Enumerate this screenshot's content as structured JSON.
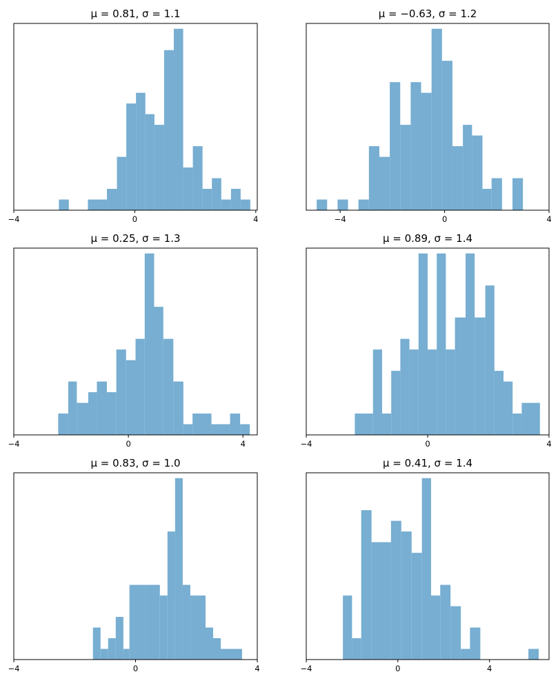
{
  "chart_data": [
    {
      "type": "bar",
      "title": "μ = 0.81,    σ = 1.1",
      "xlim": [
        -4,
        4.05
      ],
      "xticks": [
        -4,
        0,
        4
      ],
      "xtick_labels": [
        "−4",
        "0",
        "4"
      ],
      "ylim": [
        0,
        17.5
      ],
      "yaxis_visible": false,
      "color": "#77aed2",
      "bins": [
        {
          "x0": -2.51,
          "x1": -2.18,
          "count": 1
        },
        {
          "x0": -1.55,
          "x1": -0.92,
          "count": 1
        },
        {
          "x0": -0.92,
          "x1": -0.59,
          "count": 2
        },
        {
          "x0": -0.59,
          "x1": -0.28,
          "count": 5
        },
        {
          "x0": -0.28,
          "x1": 0.04,
          "count": 10
        },
        {
          "x0": 0.04,
          "x1": 0.35,
          "count": 11
        },
        {
          "x0": 0.35,
          "x1": 0.65,
          "count": 9
        },
        {
          "x0": 0.65,
          "x1": 0.97,
          "count": 8
        },
        {
          "x0": 0.97,
          "x1": 1.29,
          "count": 15
        },
        {
          "x0": 1.29,
          "x1": 1.6,
          "count": 17
        },
        {
          "x0": 1.6,
          "x1": 1.92,
          "count": 4
        },
        {
          "x0": 1.92,
          "x1": 2.24,
          "count": 6
        },
        {
          "x0": 2.24,
          "x1": 2.55,
          "count": 2
        },
        {
          "x0": 2.55,
          "x1": 2.86,
          "count": 3
        },
        {
          "x0": 2.86,
          "x1": 3.18,
          "count": 1
        },
        {
          "x0": 3.18,
          "x1": 3.5,
          "count": 2
        },
        {
          "x0": 3.5,
          "x1": 3.82,
          "count": 1
        }
      ]
    },
    {
      "type": "bar",
      "title": "μ = −0.63,    σ = 1.2",
      "xlim": [
        -5.3,
        4
      ],
      "xticks": [
        -4,
        0,
        4
      ],
      "xtick_labels": [
        "−4",
        "0",
        "4"
      ],
      "ylim": [
        0,
        17.5
      ],
      "yaxis_visible": false,
      "color": "#77aed2",
      "bins": [
        {
          "x0": -4.9,
          "x1": -4.5,
          "count": 1
        },
        {
          "x0": -4.1,
          "x1": -3.7,
          "count": 1
        },
        {
          "x0": -3.3,
          "x1": -2.9,
          "count": 1
        },
        {
          "x0": -2.9,
          "x1": -2.5,
          "count": 6
        },
        {
          "x0": -2.5,
          "x1": -2.1,
          "count": 5
        },
        {
          "x0": -2.1,
          "x1": -1.7,
          "count": 12
        },
        {
          "x0": -1.7,
          "x1": -1.3,
          "count": 8
        },
        {
          "x0": -1.3,
          "x1": -0.9,
          "count": 12
        },
        {
          "x0": -0.9,
          "x1": -0.5,
          "count": 11
        },
        {
          "x0": -0.5,
          "x1": -0.1,
          "count": 17
        },
        {
          "x0": -0.1,
          "x1": 0.3,
          "count": 14
        },
        {
          "x0": 0.3,
          "x1": 0.7,
          "count": 6
        },
        {
          "x0": 0.7,
          "x1": 1.05,
          "count": 8
        },
        {
          "x0": 1.05,
          "x1": 1.45,
          "count": 7
        },
        {
          "x0": 1.45,
          "x1": 1.8,
          "count": 2
        },
        {
          "x0": 1.8,
          "x1": 2.2,
          "count": 3
        },
        {
          "x0": 2.6,
          "x1": 3.0,
          "count": 3
        }
      ]
    },
    {
      "type": "bar",
      "title": "μ = 0.25,    σ = 1.3",
      "xlim": [
        -4,
        4.5
      ],
      "xticks": [
        -4,
        0,
        4
      ],
      "xtick_labels": [
        "−4",
        "0",
        "4"
      ],
      "ylim": [
        0,
        17.5
      ],
      "yaxis_visible": false,
      "color": "#77aed2",
      "bins": [
        {
          "x0": -2.45,
          "x1": -2.1,
          "count": 2
        },
        {
          "x0": -2.1,
          "x1": -1.8,
          "count": 5
        },
        {
          "x0": -1.8,
          "x1": -1.4,
          "count": 3
        },
        {
          "x0": -1.4,
          "x1": -1.1,
          "count": 4
        },
        {
          "x0": -1.1,
          "x1": -0.75,
          "count": 5
        },
        {
          "x0": -0.75,
          "x1": -0.42,
          "count": 4
        },
        {
          "x0": -0.42,
          "x1": -0.08,
          "count": 8
        },
        {
          "x0": -0.08,
          "x1": 0.25,
          "count": 7
        },
        {
          "x0": 0.25,
          "x1": 0.57,
          "count": 9
        },
        {
          "x0": 0.57,
          "x1": 0.9,
          "count": 17
        },
        {
          "x0": 0.9,
          "x1": 1.22,
          "count": 12
        },
        {
          "x0": 1.22,
          "x1": 1.57,
          "count": 9
        },
        {
          "x0": 1.57,
          "x1": 1.92,
          "count": 5
        },
        {
          "x0": 1.92,
          "x1": 2.24,
          "count": 1
        },
        {
          "x0": 2.24,
          "x1": 2.9,
          "count": 2
        },
        {
          "x0": 2.9,
          "x1": 3.55,
          "count": 1
        },
        {
          "x0": 3.55,
          "x1": 3.9,
          "count": 2
        },
        {
          "x0": 3.9,
          "x1": 4.24,
          "count": 1
        }
      ]
    },
    {
      "type": "bar",
      "title": "μ = 0.89,    σ = 1.4",
      "xlim": [
        -4,
        4
      ],
      "xticks": [
        -4,
        0,
        4
      ],
      "xtick_labels": [
        "−4",
        "0",
        "4"
      ],
      "ylim": [
        0,
        17.5
      ],
      "yaxis_visible": false,
      "color": "#77aed2",
      "bins": [
        {
          "x0": -2.4,
          "x1": -1.8,
          "count": 2
        },
        {
          "x0": -1.8,
          "x1": -1.5,
          "count": 8
        },
        {
          "x0": -1.5,
          "x1": -1.2,
          "count": 2
        },
        {
          "x0": -1.2,
          "x1": -0.9,
          "count": 6
        },
        {
          "x0": -0.9,
          "x1": -0.6,
          "count": 9
        },
        {
          "x0": -0.6,
          "x1": -0.3,
          "count": 8
        },
        {
          "x0": -0.3,
          "x1": 0.0,
          "count": 17
        },
        {
          "x0": 0.0,
          "x1": 0.3,
          "count": 8
        },
        {
          "x0": 0.3,
          "x1": 0.6,
          "count": 17
        },
        {
          "x0": 0.6,
          "x1": 0.9,
          "count": 8
        },
        {
          "x0": 0.9,
          "x1": 1.25,
          "count": 11
        },
        {
          "x0": 1.25,
          "x1": 1.55,
          "count": 17
        },
        {
          "x0": 1.55,
          "x1": 1.9,
          "count": 11
        },
        {
          "x0": 1.9,
          "x1": 2.2,
          "count": 14
        },
        {
          "x0": 2.2,
          "x1": 2.5,
          "count": 6
        },
        {
          "x0": 2.5,
          "x1": 2.8,
          "count": 5
        },
        {
          "x0": 2.8,
          "x1": 3.1,
          "count": 2
        },
        {
          "x0": 3.1,
          "x1": 3.7,
          "count": 3
        }
      ]
    },
    {
      "type": "bar",
      "title": "μ = 0.83,    σ = 1.0",
      "xlim": [
        -4,
        4
      ],
      "xticks": [
        -4,
        0,
        4
      ],
      "xtick_labels": [
        "−4",
        "0",
        "4"
      ],
      "ylim": [
        0,
        17.5
      ],
      "yaxis_visible": false,
      "color": "#77aed2",
      "bins": [
        {
          "x0": -1.4,
          "x1": -1.15,
          "count": 3
        },
        {
          "x0": -1.15,
          "x1": -0.9,
          "count": 1
        },
        {
          "x0": -0.9,
          "x1": -0.65,
          "count": 2
        },
        {
          "x0": -0.65,
          "x1": -0.4,
          "count": 4
        },
        {
          "x0": -0.4,
          "x1": -0.2,
          "count": 1
        },
        {
          "x0": -0.2,
          "x1": 0.35,
          "count": 7
        },
        {
          "x0": 0.35,
          "x1": 0.8,
          "count": 7
        },
        {
          "x0": 0.8,
          "x1": 1.05,
          "count": 6
        },
        {
          "x0": 1.05,
          "x1": 1.3,
          "count": 12
        },
        {
          "x0": 1.3,
          "x1": 1.55,
          "count": 17
        },
        {
          "x0": 1.55,
          "x1": 1.8,
          "count": 7
        },
        {
          "x0": 1.8,
          "x1": 2.05,
          "count": 6
        },
        {
          "x0": 2.05,
          "x1": 2.3,
          "count": 6
        },
        {
          "x0": 2.3,
          "x1": 2.55,
          "count": 3
        },
        {
          "x0": 2.55,
          "x1": 2.8,
          "count": 2
        },
        {
          "x0": 2.8,
          "x1": 3.5,
          "count": 1
        }
      ]
    },
    {
      "type": "bar",
      "title": "μ = 0.41,    σ = 1.4",
      "xlim": [
        -4,
        6.6
      ],
      "xticks": [
        -4,
        0,
        4
      ],
      "xtick_labels": [
        "−4",
        "0",
        "4"
      ],
      "ylim": [
        0,
        17.5
      ],
      "yaxis_visible": false,
      "color": "#77aed2",
      "bins": [
        {
          "x0": -2.4,
          "x1": -2.0,
          "count": 6
        },
        {
          "x0": -2.0,
          "x1": -1.6,
          "count": 2
        },
        {
          "x0": -1.6,
          "x1": -1.15,
          "count": 14
        },
        {
          "x0": -1.15,
          "x1": -0.3,
          "count": 11
        },
        {
          "x0": -0.3,
          "x1": 0.15,
          "count": 13
        },
        {
          "x0": 0.15,
          "x1": 0.6,
          "count": 12
        },
        {
          "x0": 0.6,
          "x1": 1.05,
          "count": 10
        },
        {
          "x0": 1.05,
          "x1": 1.45,
          "count": 17
        },
        {
          "x0": 1.45,
          "x1": 1.85,
          "count": 6
        },
        {
          "x0": 1.85,
          "x1": 2.3,
          "count": 7
        },
        {
          "x0": 2.3,
          "x1": 2.75,
          "count": 5
        },
        {
          "x0": 2.75,
          "x1": 3.15,
          "count": 1
        },
        {
          "x0": 3.15,
          "x1": 3.6,
          "count": 3
        },
        {
          "x0": 5.7,
          "x1": 6.15,
          "count": 1
        }
      ]
    }
  ]
}
